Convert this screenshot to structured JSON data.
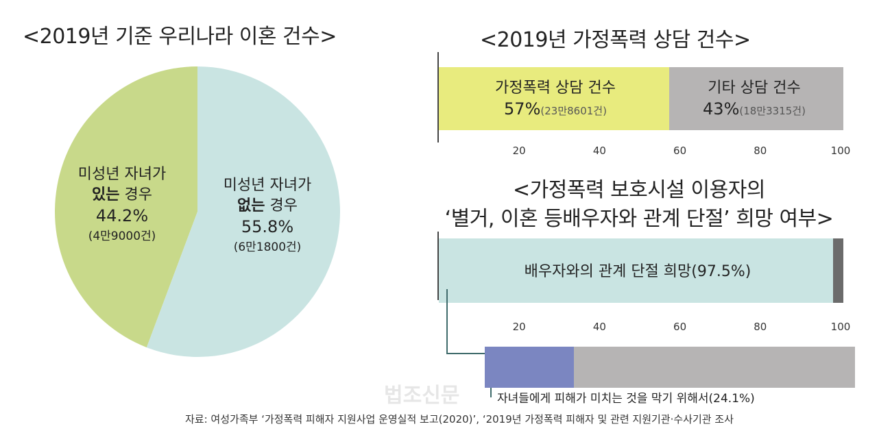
{
  "chart_data": [
    {
      "type": "pie",
      "title": "<2019년 기준 우리나라 이혼 건수>",
      "slices": [
        {
          "label_line1": "미성년 자녀가",
          "label_bold": "있는",
          "label_rest": " 경우",
          "pct_text": "44.2%",
          "count_text": "(4만9000건)",
          "value": 44.2,
          "color": "#c8d98a"
        },
        {
          "label_line1": "미성년 자녀가",
          "label_bold": "없는",
          "label_rest": " 경우",
          "pct_text": "55.8%",
          "count_text": "(6만1800건)",
          "value": 55.8,
          "color": "#c9e4e2"
        }
      ]
    },
    {
      "type": "bar",
      "stacked": true,
      "title": "<2019년 가정폭력 상담 건수>",
      "xlim": [
        0,
        100
      ],
      "ticks": [
        "20",
        "40",
        "60",
        "80",
        "100"
      ],
      "tick_values": [
        20,
        40,
        60,
        80,
        100
      ],
      "segments": [
        {
          "label": "가정폭력 상담 건수",
          "pct_text": "57%",
          "count_text": "(23만8601건)",
          "value": 57,
          "color": "#e8eb7e"
        },
        {
          "label": "기타 상담 건수",
          "pct_text": "43%",
          "count_text": "(18만3315건)",
          "value": 43,
          "color": "#b6b4b4"
        }
      ]
    },
    {
      "type": "bar",
      "stacked": true,
      "title_line1": "<가정폭력 보호시설 이용자의",
      "title_line2": "‘별거, 이혼 등배우자와 관계 단절’ 희망 여부>",
      "xlim": [
        0,
        100
      ],
      "ticks": [
        "20",
        "40",
        "60",
        "80",
        "100"
      ],
      "tick_values": [
        20,
        40,
        60,
        80,
        100
      ],
      "segments": [
        {
          "label": "배우자와의 관계 단절 희망(97.5%)",
          "value": 97.5,
          "color": "#c9e4e2"
        },
        {
          "label": "",
          "value": 2.5,
          "color": "#6b6b6b"
        }
      ],
      "sub_bar": {
        "label": "자녀들에게 피해가 미치는 것을 막기 위해서(24.1%)",
        "segments": [
          {
            "value": 24.1,
            "color": "#7b86c1"
          },
          {
            "value": 75.9,
            "color": "#b6b4b4"
          }
        ]
      }
    }
  ],
  "watermark": "법조신문",
  "source": "자료: 여성가족부 ‘가정폭력 피해자 지원사업 운영실적 보고(2020)’, ‘2019년 가정폭력 피해자 및 관련 지원기관·수사기관 조사"
}
